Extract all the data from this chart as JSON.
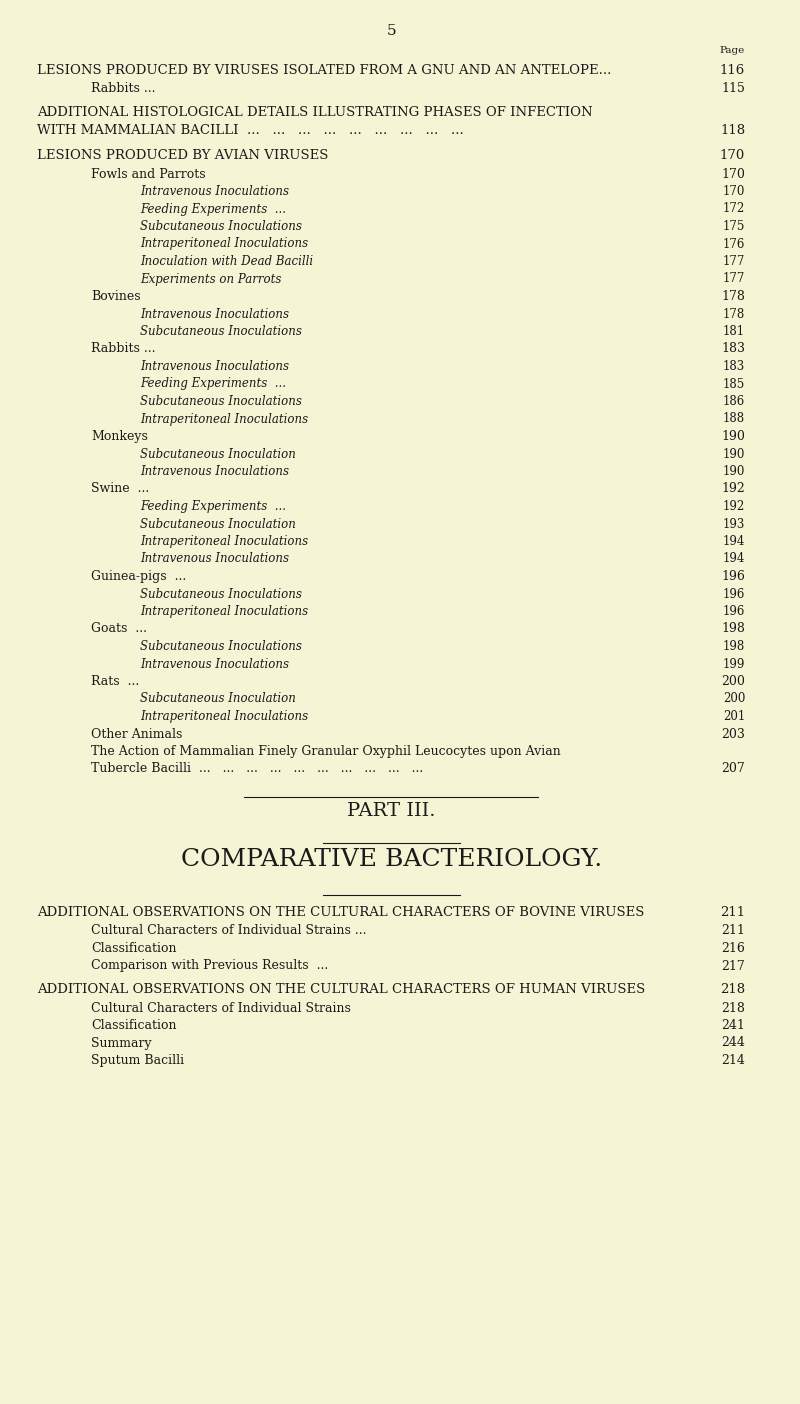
{
  "bg_color": "#f5f5d5",
  "text_color": "#1a1a1a",
  "page_number": "5",
  "lines": [
    {
      "text": "LESIONS PRODUCED BY VIRUSES ISOLATED FROM A GNU AND AN ANTELOPE...",
      "page": "116",
      "indent": 0,
      "style": "heading",
      "size": 9.5
    },
    {
      "text": "Rabbits ...",
      "page": "115",
      "indent": 1,
      "style": "subheading",
      "size": 9.0
    },
    {
      "text": "",
      "page": "",
      "indent": 0,
      "style": "space",
      "size": 6
    },
    {
      "text": "ADDITIONAL HISTOLOGICAL DETAILS ILLUSTRATING PHASES OF INFECTION",
      "page": "",
      "indent": 0,
      "style": "heading",
      "size": 9.5
    },
    {
      "text": "WITH MAMMALIAN BACILLI  ...   ...   ...   ...   ...   ...   ...   ...   ...",
      "page": "118",
      "indent": 0,
      "style": "heading",
      "size": 9.5
    },
    {
      "text": "",
      "page": "",
      "indent": 0,
      "style": "space",
      "size": 6
    },
    {
      "text": "LESIONS PRODUCED BY AVIAN VIRUSES",
      "page": "170",
      "indent": 0,
      "style": "heading",
      "size": 9.5
    },
    {
      "text": "Fowls and Parrots",
      "page": "170",
      "indent": 1,
      "style": "subheading",
      "size": 9.0
    },
    {
      "text": "Intravenous Inoculations",
      "page": "170",
      "indent": 2,
      "style": "italic",
      "size": 8.5
    },
    {
      "text": "Feeding Experiments  ...",
      "page": "172",
      "indent": 2,
      "style": "italic",
      "size": 8.5
    },
    {
      "text": "Subcutaneous Inoculations",
      "page": "175",
      "indent": 2,
      "style": "italic",
      "size": 8.5
    },
    {
      "text": "Intraperitoneal Inoculations",
      "page": "176",
      "indent": 2,
      "style": "italic",
      "size": 8.5
    },
    {
      "text": "Inoculation with Dead Bacilli",
      "page": "177",
      "indent": 2,
      "style": "italic",
      "size": 8.5
    },
    {
      "text": "Experiments on Parrots",
      "page": "177",
      "indent": 2,
      "style": "italic",
      "size": 8.5
    },
    {
      "text": "Bovines",
      "page": "178",
      "indent": 1,
      "style": "subheading",
      "size": 9.0
    },
    {
      "text": "Intravenous Inoculations",
      "page": "178",
      "indent": 2,
      "style": "italic",
      "size": 8.5
    },
    {
      "text": "Subcutaneous Inoculations",
      "page": "181",
      "indent": 2,
      "style": "italic",
      "size": 8.5
    },
    {
      "text": "Rabbits ...",
      "page": "183",
      "indent": 1,
      "style": "subheading",
      "size": 9.0
    },
    {
      "text": "Intravenous Inoculations",
      "page": "183",
      "indent": 2,
      "style": "italic",
      "size": 8.5
    },
    {
      "text": "Feeding Experiments  ...",
      "page": "185",
      "indent": 2,
      "style": "italic",
      "size": 8.5
    },
    {
      "text": "Subcutaneous Inoculations",
      "page": "186",
      "indent": 2,
      "style": "italic",
      "size": 8.5
    },
    {
      "text": "Intraperitoneal Inoculations",
      "page": "188",
      "indent": 2,
      "style": "italic",
      "size": 8.5
    },
    {
      "text": "Monkeys",
      "page": "190",
      "indent": 1,
      "style": "subheading",
      "size": 9.0
    },
    {
      "text": "Subcutaneous Inoculation",
      "page": "190",
      "indent": 2,
      "style": "italic",
      "size": 8.5
    },
    {
      "text": "Intravenous Inoculations",
      "page": "190",
      "indent": 2,
      "style": "italic",
      "size": 8.5
    },
    {
      "text": "Swine  ...",
      "page": "192",
      "indent": 1,
      "style": "subheading",
      "size": 9.0
    },
    {
      "text": "Feeding Experiments  ...",
      "page": "192",
      "indent": 2,
      "style": "italic",
      "size": 8.5
    },
    {
      "text": "Subcutaneous Inoculation",
      "page": "193",
      "indent": 2,
      "style": "italic",
      "size": 8.5
    },
    {
      "text": "Intraperitoneal Inoculations",
      "page": "194",
      "indent": 2,
      "style": "italic",
      "size": 8.5
    },
    {
      "text": "Intravenous Inoculations",
      "page": "194",
      "indent": 2,
      "style": "italic",
      "size": 8.5
    },
    {
      "text": "Guinea-pigs  ...",
      "page": "196",
      "indent": 1,
      "style": "subheading",
      "size": 9.0
    },
    {
      "text": "Subcutaneous Inoculations",
      "page": "196",
      "indent": 2,
      "style": "italic",
      "size": 8.5
    },
    {
      "text": "Intraperitoneal Inoculations",
      "page": "196",
      "indent": 2,
      "style": "italic",
      "size": 8.5
    },
    {
      "text": "Goats  ...",
      "page": "198",
      "indent": 1,
      "style": "subheading",
      "size": 9.0
    },
    {
      "text": "Subcutaneous Inoculations",
      "page": "198",
      "indent": 2,
      "style": "italic",
      "size": 8.5
    },
    {
      "text": "Intravenous Inoculations",
      "page": "199",
      "indent": 2,
      "style": "italic",
      "size": 8.5
    },
    {
      "text": "Rats  ...",
      "page": "200",
      "indent": 1,
      "style": "subheading",
      "size": 9.0
    },
    {
      "text": "Subcutaneous Inoculation",
      "page": "200",
      "indent": 2,
      "style": "italic",
      "size": 8.5
    },
    {
      "text": "Intraperitoneal Inoculations",
      "page": "201",
      "indent": 2,
      "style": "italic",
      "size": 8.5
    },
    {
      "text": "Other Animals",
      "page": "203",
      "indent": 1,
      "style": "subheading",
      "size": 9.0
    },
    {
      "text": "The Action of Mammalian Finely Granular Oxyphil Leucocytes upon Avian",
      "page": "",
      "indent": 1,
      "style": "subheading",
      "size": 9.0
    },
    {
      "text": "Tubercle Bacilli  ...   ...   ...   ...   ...   ...   ...   ...   ...   ...",
      "page": "207",
      "indent": 1,
      "style": "subheading",
      "size": 9.0
    },
    {
      "text": "",
      "page": "",
      "indent": 0,
      "style": "divider",
      "size": 10
    },
    {
      "text": "PART III.",
      "page": "",
      "indent": 0,
      "style": "part",
      "size": 14
    },
    {
      "text": "",
      "page": "",
      "indent": 0,
      "style": "divider_sm",
      "size": 8
    },
    {
      "text": "COMPARATIVE BACTERIOLOGY.",
      "page": "",
      "indent": 0,
      "style": "chapter",
      "size": 18
    },
    {
      "text": "",
      "page": "",
      "indent": 0,
      "style": "divider_sm",
      "size": 8
    },
    {
      "text": "",
      "page": "",
      "indent": 0,
      "style": "space",
      "size": 6
    },
    {
      "text": "ADDITIONAL OBSERVATIONS ON THE CULTURAL CHARACTERS OF BOVINE VIRUSES",
      "page": "211",
      "indent": 0,
      "style": "heading",
      "size": 9.5
    },
    {
      "text": "Cultural Characters of Individual Strains ...",
      "page": "211",
      "indent": 1,
      "style": "subheading",
      "size": 9.0
    },
    {
      "text": "Classification",
      "page": "216",
      "indent": 1,
      "style": "subheading",
      "size": 9.0
    },
    {
      "text": "Comparison with Previous Results  ...",
      "page": "217",
      "indent": 1,
      "style": "subheading",
      "size": 9.0
    },
    {
      "text": "",
      "page": "",
      "indent": 0,
      "style": "space",
      "size": 6
    },
    {
      "text": "ADDITIONAL OBSERVATIONS ON THE CULTURAL CHARACTERS OF HUMAN VIRUSES",
      "page": "218",
      "indent": 0,
      "style": "heading",
      "size": 9.5
    },
    {
      "text": "Cultural Characters of Individual Strains",
      "page": "218",
      "indent": 1,
      "style": "subheading",
      "size": 9.0
    },
    {
      "text": "Classification",
      "page": "241",
      "indent": 1,
      "style": "subheading",
      "size": 9.0
    },
    {
      "text": "Summary",
      "page": "244",
      "indent": 1,
      "style": "subheading",
      "size": 9.0
    },
    {
      "text": "Sputum Bacilli",
      "page": "214",
      "indent": 1,
      "style": "subheading",
      "size": 9.0
    }
  ]
}
